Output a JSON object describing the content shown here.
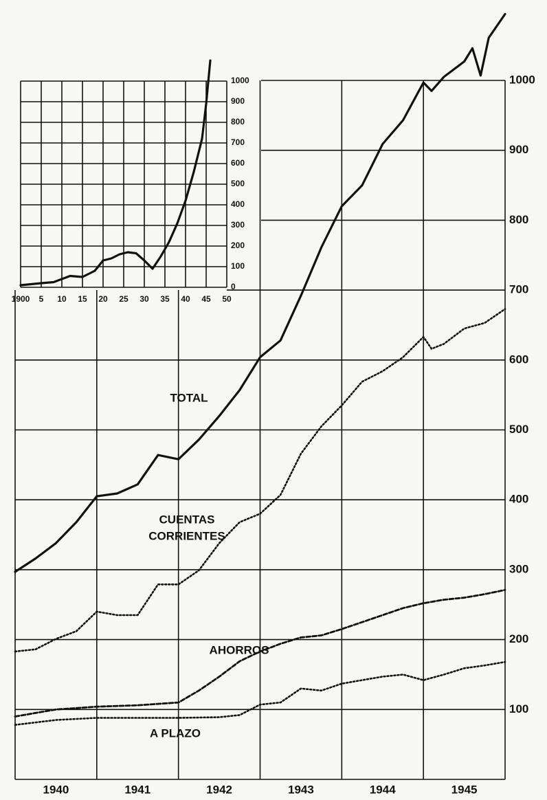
{
  "chart_data": [
    {
      "type": "line",
      "categories": [
        "1940",
        "1941",
        "1942",
        "1943",
        "1944",
        "1945"
      ],
      "xlim": [
        1940,
        1946
      ],
      "xticks": [
        1940,
        1941,
        1942,
        1943,
        1944,
        1945,
        1946
      ],
      "ylim": [
        0,
        1110
      ],
      "yticks": [
        100,
        200,
        300,
        400,
        500,
        600,
        700,
        800,
        900,
        1000
      ],
      "grid": true,
      "annotations": [
        "TOTAL",
        "CUENTAS",
        "CORRIENTES",
        "AHORROS",
        "A PLAZO"
      ],
      "series": [
        {
          "color": "#111111",
          "dash": "solid",
          "x": [
            1940,
            1940.25,
            1940.5,
            1940.75,
            1941,
            1941.25,
            1941.5,
            1941.75,
            1942,
            1942.25,
            1942.5,
            1942.75,
            1943,
            1943.25,
            1943.5,
            1943.75,
            1944,
            1944.25,
            1944.5,
            1944.75,
            1945,
            1945.1,
            1945.25,
            1945.5,
            1945.6,
            1945.7,
            1945.8,
            1946
          ],
          "values": [
            297,
            316,
            338,
            368,
            405,
            409,
            422,
            464,
            458,
            486,
            520,
            557,
            604,
            628,
            692,
            761,
            820,
            850,
            909,
            943,
            997,
            985,
            1005,
            1027,
            1046,
            1007,
            1061,
            1095
          ]
        },
        {
          "color": "#111111",
          "dash": "dotted",
          "x": [
            1940,
            1940.25,
            1940.5,
            1940.75,
            1941,
            1941.25,
            1941.5,
            1941.75,
            1942,
            1942.25,
            1942.5,
            1942.75,
            1943,
            1943.25,
            1943.5,
            1943.75,
            1944,
            1944.25,
            1944.5,
            1944.75,
            1945,
            1945.1,
            1945.25,
            1945.5,
            1945.75,
            1946
          ],
          "values": [
            183,
            186,
            201,
            212,
            240,
            235,
            235,
            279,
            279,
            299,
            338,
            368,
            380,
            407,
            466,
            505,
            535,
            569,
            584,
            604,
            633,
            616,
            623,
            645,
            653,
            673
          ]
        },
        {
          "color": "#111111",
          "dash": "dashed",
          "x": [
            1940,
            1940.5,
            1941,
            1941.5,
            1942,
            1942.25,
            1942.5,
            1942.75,
            1943,
            1943.25,
            1943.5,
            1943.75,
            1944,
            1944.25,
            1944.5,
            1944.75,
            1945,
            1945.25,
            1945.5,
            1945.75,
            1946
          ],
          "values": [
            90,
            100,
            104,
            106,
            110,
            127,
            147,
            169,
            183,
            194,
            203,
            206,
            215,
            225,
            235,
            245,
            252,
            257,
            260,
            265,
            271
          ]
        },
        {
          "color": "#111111",
          "dash": "dotted",
          "x": [
            1940,
            1940.5,
            1941,
            1941.5,
            1942,
            1942.5,
            1942.75,
            1943,
            1943.25,
            1943.5,
            1943.75,
            1944,
            1944.25,
            1944.5,
            1944.75,
            1945,
            1945.25,
            1945.5,
            1945.75,
            1946
          ],
          "values": [
            78,
            85,
            88,
            88,
            88,
            89,
            92,
            107,
            110,
            130,
            127,
            137,
            142,
            147,
            150,
            142,
            150,
            159,
            163,
            168
          ]
        }
      ]
    },
    {
      "type": "line",
      "xlim": [
        1900,
        1950
      ],
      "xticks": [
        {
          "value": 1900,
          "label": "1900"
        },
        {
          "value": 1905,
          "label": "5"
        },
        {
          "value": 1910,
          "label": "10"
        },
        {
          "value": 1915,
          "label": "15"
        },
        {
          "value": 1920,
          "label": "20"
        },
        {
          "value": 1925,
          "label": "25"
        },
        {
          "value": 1930,
          "label": "30"
        },
        {
          "value": 1935,
          "label": "35"
        },
        {
          "value": 1940,
          "label": "40"
        },
        {
          "value": 1945,
          "label": "45"
        },
        {
          "value": 1950,
          "label": "50"
        }
      ],
      "ylim": [
        0,
        1000
      ],
      "yticks": [
        0,
        100,
        200,
        300,
        400,
        500,
        600,
        700,
        800,
        900,
        1000
      ],
      "grid": true,
      "series": [
        {
          "color": "#111111",
          "dash": "solid",
          "x": [
            1900,
            1905,
            1908,
            1910,
            1912,
            1915,
            1918,
            1920,
            1922,
            1924,
            1926,
            1928,
            1930,
            1932,
            1934,
            1936,
            1938,
            1940,
            1942,
            1944,
            1945,
            1946
          ],
          "values": [
            10,
            20,
            25,
            40,
            55,
            50,
            80,
            130,
            140,
            160,
            170,
            165,
            130,
            90,
            150,
            220,
            310,
            420,
            560,
            720,
            890,
            1100
          ]
        }
      ]
    }
  ]
}
